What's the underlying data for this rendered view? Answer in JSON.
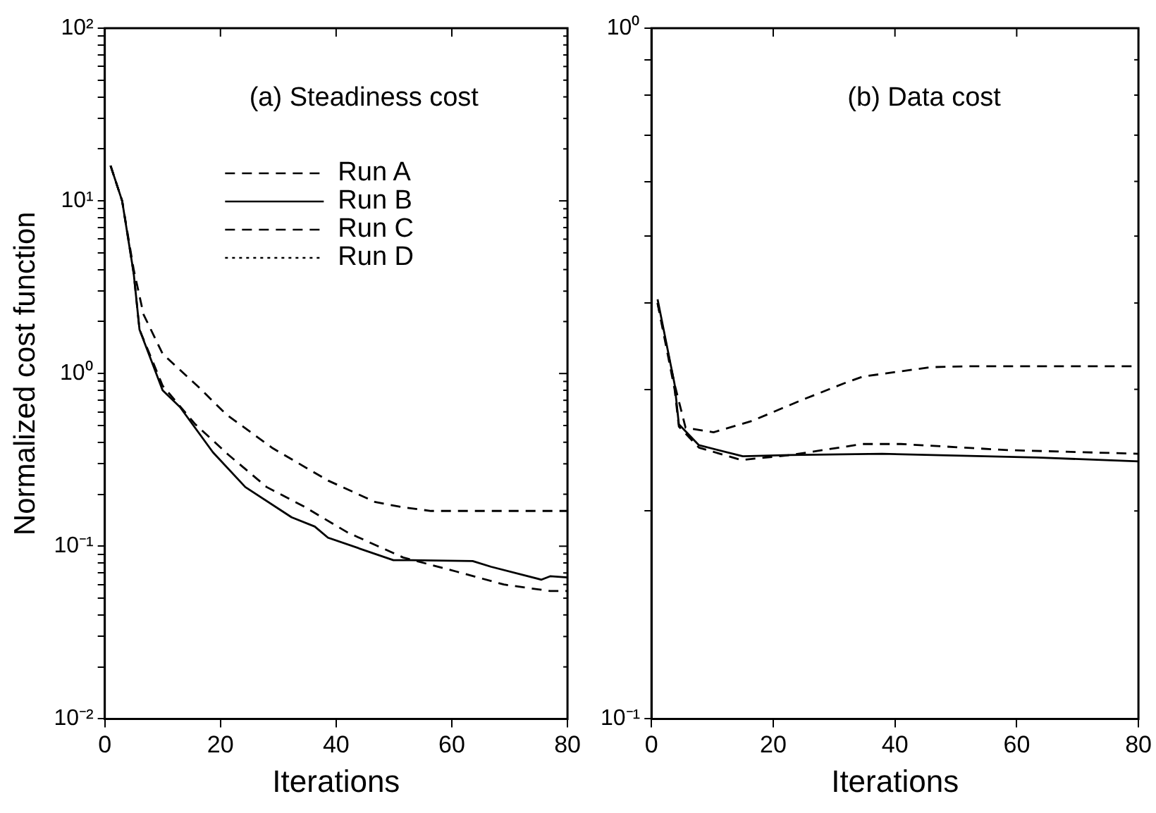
{
  "chart_data": [
    {
      "type": "line",
      "title": "(a) Steadiness cost",
      "xlabel": "Iterations",
      "ylabel": "Normalized cost function",
      "log": "y",
      "legend": "top",
      "grid": false,
      "xlim": [
        0,
        80
      ],
      "xticks": [
        0,
        20,
        40,
        60,
        80
      ],
      "ylim": [
        0.01,
        100
      ],
      "yticks": [
        {
          "value": 0.01,
          "label": "10⁻²"
        },
        {
          "value": 0.02,
          "label": null
        },
        {
          "value": 0.03,
          "label": null
        },
        {
          "value": 0.04,
          "label": null
        },
        {
          "value": 0.05,
          "label": null
        },
        {
          "value": 0.06,
          "label": null
        },
        {
          "value": 0.07,
          "label": null
        },
        {
          "value": 0.08,
          "label": null
        },
        {
          "value": 0.09,
          "label": null
        },
        {
          "value": 0.1,
          "label": "10⁻¹"
        },
        {
          "value": 0.2,
          "label": null
        },
        {
          "value": 0.3,
          "label": null
        },
        {
          "value": 0.4,
          "label": null
        },
        {
          "value": 0.5,
          "label": null
        },
        {
          "value": 0.6,
          "label": null
        },
        {
          "value": 0.7,
          "label": null
        },
        {
          "value": 0.8,
          "label": null
        },
        {
          "value": 0.9,
          "label": null
        },
        {
          "value": 1,
          "label": "10⁰"
        },
        {
          "value": 2,
          "label": null
        },
        {
          "value": 3,
          "label": null
        },
        {
          "value": 4,
          "label": null
        },
        {
          "value": 5,
          "label": null
        },
        {
          "value": 6,
          "label": null
        },
        {
          "value": 7,
          "label": null
        },
        {
          "value": 8,
          "label": null
        },
        {
          "value": 9,
          "label": null
        },
        {
          "value": 10,
          "label": "10¹"
        },
        {
          "value": 20,
          "label": null
        },
        {
          "value": 30,
          "label": null
        },
        {
          "value": 40,
          "label": null
        },
        {
          "value": 50,
          "label": null
        },
        {
          "value": 60,
          "label": null
        },
        {
          "value": 70,
          "label": null
        },
        {
          "value": 80,
          "label": null
        },
        {
          "value": 90,
          "label": null
        },
        {
          "value": 100,
          "label": "10²"
        }
      ],
      "series": [
        {
          "name": "Run A",
          "color": "#000000",
          "line_style": "dashed",
          "x": [
            1,
            3,
            5,
            6.7,
            10,
            16.3,
            21,
            29,
            38.6,
            46.8,
            51.6,
            56.4,
            65,
            80
          ],
          "values": [
            16,
            10,
            4,
            2.2,
            1.3,
            0.83,
            0.58,
            0.37,
            0.24,
            0.18,
            0.168,
            0.16,
            0.16,
            0.16
          ]
        },
        {
          "name": "Run B",
          "color": "#000000",
          "line_style": "solid",
          "x": [
            1,
            3,
            5,
            6,
            10,
            13,
            18.7,
            24.3,
            32.3,
            36.3,
            38.6,
            49.9,
            53,
            63.6,
            66.8,
            75.5,
            77,
            80
          ],
          "values": [
            16,
            10,
            3.8,
            1.8,
            0.8,
            0.64,
            0.35,
            0.22,
            0.147,
            0.13,
            0.112,
            0.083,
            0.083,
            0.082,
            0.076,
            0.064,
            0.067,
            0.066
          ]
        },
        {
          "name": "Run C",
          "color": "#000000",
          "line_style": "dashed",
          "x": [
            1,
            3,
            5,
            6,
            10,
            15.6,
            21.3,
            28,
            34.4,
            42,
            51.6,
            61,
            69,
            77,
            80
          ],
          "values": [
            16,
            10,
            3.8,
            1.8,
            0.85,
            0.51,
            0.34,
            0.22,
            0.17,
            0.12,
            0.086,
            0.071,
            0.06,
            0.055,
            0.055
          ]
        },
        {
          "name": "Run D",
          "color": "#000000",
          "line_style": "dotted"
        }
      ]
    },
    {
      "type": "line",
      "title": "(b) Data cost",
      "xlabel": "Iterations",
      "log": "y",
      "legend": false,
      "grid": false,
      "xlim": [
        0,
        80
      ],
      "xticks": [
        0,
        20,
        40,
        60,
        80
      ],
      "ylim": [
        0.1,
        1
      ],
      "yticks": [
        {
          "value": 0.1,
          "label": "10⁻¹"
        },
        {
          "value": 0.2,
          "label": null
        },
        {
          "value": 0.3,
          "label": null
        },
        {
          "value": 0.4,
          "label": null
        },
        {
          "value": 0.5,
          "label": null
        },
        {
          "value": 0.6,
          "label": null
        },
        {
          "value": 0.7,
          "label": null
        },
        {
          "value": 0.8,
          "label": null
        },
        {
          "value": 0.9,
          "label": null
        },
        {
          "value": 1,
          "label": "10⁰"
        }
      ],
      "series": [
        {
          "color": "#000000",
          "line_style": "dashed",
          "x": [
            1,
            3.8,
            5.6,
            10.2,
            16.5,
            24.5,
            31.6,
            34.7,
            45.9,
            52.4,
            80
          ],
          "values": [
            0.4,
            0.305,
            0.264,
            0.26,
            0.27,
            0.289,
            0.306,
            0.313,
            0.323,
            0.324,
            0.324
          ]
        },
        {
          "color": "#000000",
          "line_style": "solid",
          "x": [
            1,
            3.8,
            4.5,
            7.8,
            15,
            22.8,
            37.9,
            63.3,
            80
          ],
          "values": [
            0.405,
            0.305,
            0.267,
            0.249,
            0.24,
            0.241,
            0.242,
            0.239,
            0.236
          ]
        },
        {
          "color": "#000000",
          "line_style": "dashed",
          "x": [
            1,
            3.8,
            4.5,
            7.8,
            14.8,
            22.8,
            34.7,
            41,
            58.5,
            80
          ],
          "values": [
            0.4,
            0.3,
            0.265,
            0.247,
            0.237,
            0.241,
            0.25,
            0.25,
            0.245,
            0.242
          ]
        }
      ]
    }
  ]
}
